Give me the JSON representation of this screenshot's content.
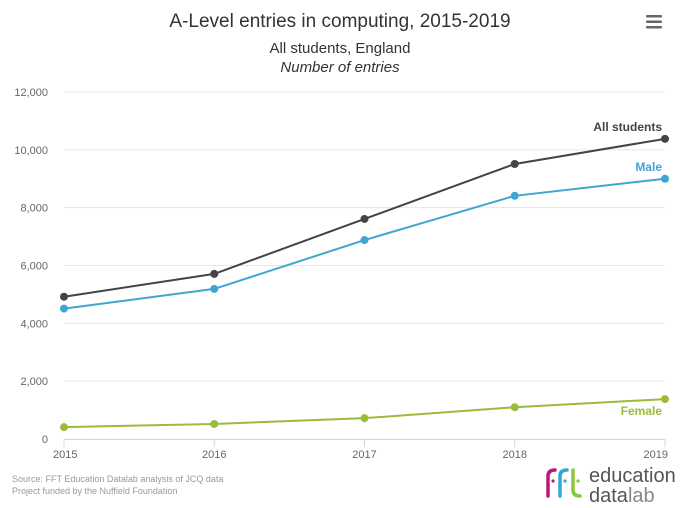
{
  "menu": {
    "icon": "hamburger-menu-icon"
  },
  "chart_data": {
    "type": "line",
    "title": "A-Level entries in computing, 2015-2019",
    "subtitle": "All students, England",
    "subtitle2": "Number of entries",
    "xlabel": "",
    "ylabel": "Number of entries",
    "x": [
      "2015",
      "2016",
      "2017",
      "2018",
      "2019"
    ],
    "ylim": [
      0,
      12000
    ],
    "yticks": [
      0,
      2000,
      4000,
      6000,
      8000,
      10000,
      12000
    ],
    "ytick_labels": [
      "0",
      "2,000",
      "4,000",
      "6,000",
      "8,000",
      "10,000",
      "12,000"
    ],
    "grid": true,
    "legend": "inline labels at line ends",
    "series": [
      {
        "name": "All students",
        "color": "#434348",
        "values": [
          4920,
          5710,
          7610,
          9510,
          10380
        ],
        "label_position": "above"
      },
      {
        "name": "Male",
        "color": "#3ea6d2",
        "values": [
          4510,
          5190,
          6880,
          8410,
          9000
        ],
        "label_position": "above"
      },
      {
        "name": "Female",
        "color": "#9bbb3a",
        "values": [
          410,
          520,
          720,
          1100,
          1380
        ],
        "label_position": "below"
      }
    ]
  },
  "footer": {
    "source_line1": "Source: FFT Education Datalab analysis of JCQ data",
    "source_line2": "Project funded by the Nuffield Foundation"
  },
  "logo": {
    "mark": "fft",
    "line1": "education",
    "line2_bold": "data",
    "line2_light": "lab",
    "colors": [
      "#b7197c",
      "#2fa8d5",
      "#8cc63f"
    ]
  }
}
